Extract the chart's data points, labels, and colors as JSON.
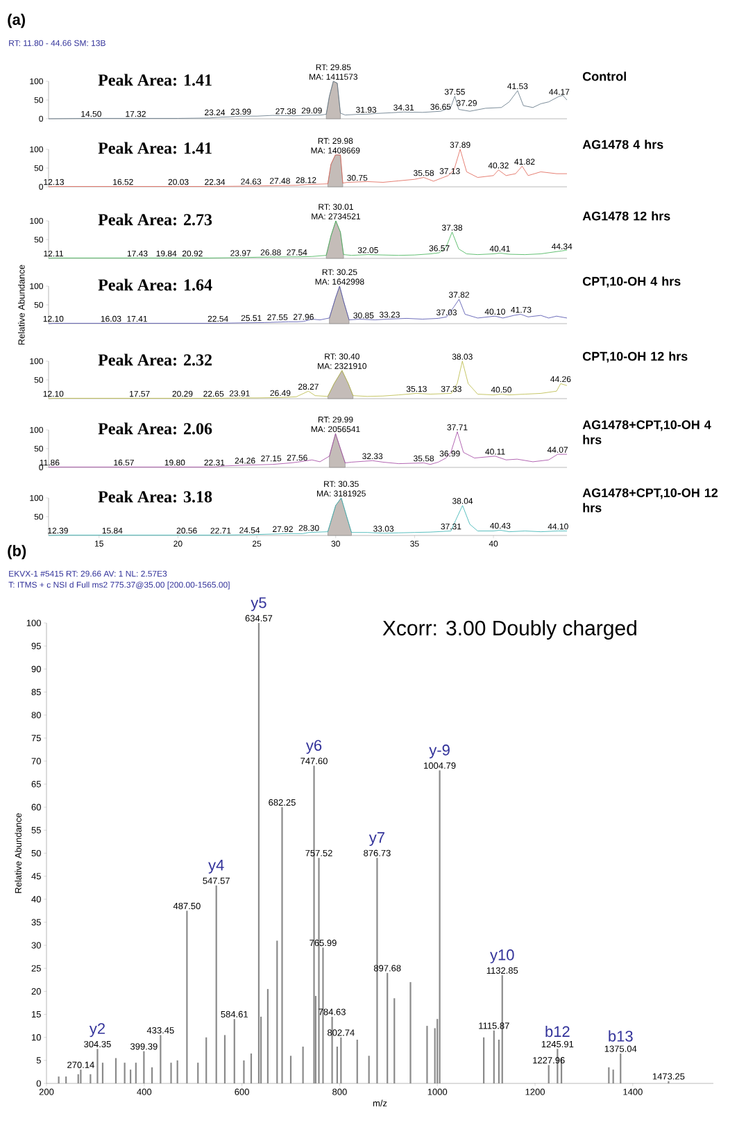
{
  "chart_data": [
    {
      "type": "line",
      "title": "(a)",
      "subtitle": "RT: 11.80 - 44.66 SM: 13B",
      "xlim": [
        11.8,
        44.66
      ],
      "ylim": [
        0,
        100
      ],
      "yticks": [
        0,
        50,
        100
      ],
      "tick_labels": "y",
      "series": [
        {
          "type": "area",
          "color": "#c4bcb8",
          "x": [
            29.4,
            29.6,
            29.85,
            30.1,
            30.3
          ],
          "values": [
            12,
            60,
            100,
            95,
            15
          ]
        },
        {
          "name": "Control",
          "color": "#5a7080",
          "x": [
            11.8,
            14.5,
            17.32,
            20,
            22,
            22.5,
            23.24,
            23.99,
            25,
            26,
            27.38,
            28,
            29.09,
            29.4,
            29.6,
            29.85,
            30.1,
            30.3,
            30.6,
            31.5,
            31.93,
            32.5,
            33.5,
            34.31,
            35.5,
            36.65,
            37.29,
            37.55,
            37.8,
            38.5,
            39.5,
            40.5,
            41,
            41.53,
            41.9,
            42.5,
            43,
            43.5,
            44.17,
            44.4,
            44.66
          ],
          "values": [
            0,
            1,
            1,
            1,
            2,
            4,
            5,
            7,
            7,
            9,
            8,
            9,
            10,
            12,
            60,
            100,
            95,
            15,
            10,
            12,
            12,
            14,
            16,
            18,
            17,
            20,
            30,
            60,
            25,
            20,
            28,
            30,
            45,
            75,
            35,
            30,
            40,
            45,
            60,
            62,
            50
          ]
        }
      ],
      "annotations": [
        "Peak Area: 1.41",
        {
          "text": "RT: 29.85",
          "x": 29.85,
          "y": 100
        },
        {
          "text": "MA: 1411573",
          "x": 29.85,
          "y": 100
        },
        {
          "text": "14.50",
          "x": 14.5,
          "y": 1
        },
        {
          "text": "17.32",
          "x": 17.32,
          "y": 1
        },
        {
          "text": "23.24",
          "x": 23.24,
          "y": 5
        },
        {
          "text": "23.99",
          "x": 23.99,
          "y": 7
        },
        {
          "text": "27.38",
          "x": 27.38,
          "y": 8
        },
        {
          "text": "29.09",
          "x": 29.09,
          "y": 10
        },
        {
          "text": "31.93",
          "x": 31.93,
          "y": 12
        },
        {
          "text": "34.31",
          "x": 34.31,
          "y": 18
        },
        {
          "text": "36.65",
          "x": 36.65,
          "y": 20
        },
        {
          "text": "37.29",
          "x": 37.29,
          "y": 30
        },
        {
          "text": "37.55",
          "x": 37.55,
          "y": 60
        },
        {
          "text": "41.53",
          "x": 41.53,
          "y": 75
        },
        {
          "text": "44.17",
          "x": 44.17,
          "y": 60
        }
      ]
    },
    {
      "type": "line",
      "xlim": [
        11.8,
        44.66
      ],
      "ylim": [
        0,
        100
      ],
      "yticks": [
        0,
        50,
        100
      ],
      "tick_labels": "y",
      "series": [
        {
          "type": "area",
          "color": "#c4bcb8",
          "x": [
            29.5,
            29.7,
            29.98,
            30.3,
            30.45
          ],
          "values": [
            8,
            60,
            85,
            85,
            10
          ]
        },
        {
          "name": "AG1478 4 hrs",
          "color": "#e06050",
          "x": [
            11.8,
            12.13,
            16.52,
            20.03,
            22.34,
            24.63,
            26,
            27.48,
            28.12,
            29.5,
            29.7,
            29.98,
            30.3,
            30.45,
            30.75,
            32,
            33,
            34,
            35,
            35.58,
            36.2,
            37.13,
            37.5,
            37.89,
            38.3,
            39,
            40,
            40.32,
            40.8,
            41.4,
            41.82,
            42.2,
            43,
            44,
            44.66
          ],
          "values": [
            0,
            1,
            1,
            1,
            1,
            2,
            3,
            4,
            6,
            8,
            60,
            85,
            85,
            10,
            12,
            14,
            12,
            16,
            20,
            25,
            15,
            30,
            45,
            100,
            40,
            25,
            30,
            45,
            30,
            35,
            55,
            30,
            40,
            35,
            35
          ]
        }
      ],
      "annotations": [
        "Peak Area: 1.41",
        {
          "text": "RT: 29.98",
          "x": 29.98,
          "y": 85
        },
        {
          "text": "MA: 1408669",
          "x": 29.98,
          "y": 85
        },
        {
          "text": "12.13",
          "x": 12.13,
          "y": 1
        },
        {
          "text": "16.52",
          "x": 16.52,
          "y": 1
        },
        {
          "text": "20.03",
          "x": 20.03,
          "y": 1
        },
        {
          "text": "22.34",
          "x": 22.34,
          "y": 1
        },
        {
          "text": "24.63",
          "x": 24.63,
          "y": 2
        },
        {
          "text": "27.48",
          "x": 27.48,
          "y": 4
        },
        {
          "text": "28.12",
          "x": 28.12,
          "y": 6
        },
        {
          "text": "30.75",
          "x": 30.75,
          "y": 12
        },
        {
          "text": "35.58",
          "x": 35.58,
          "y": 25
        },
        {
          "text": "37.13",
          "x": 37.13,
          "y": 30
        },
        {
          "text": "37.89",
          "x": 37.89,
          "y": 100
        },
        {
          "text": "40.32",
          "x": 40.32,
          "y": 45
        },
        {
          "text": "41.82",
          "x": 41.82,
          "y": 55
        }
      ]
    },
    {
      "type": "line",
      "xlim": [
        11.8,
        44.66
      ],
      "ylim": [
        0,
        100
      ],
      "yticks": [
        50,
        100
      ],
      "tick_labels": "y",
      "series": [
        {
          "type": "area",
          "color": "#c4bcb8",
          "x": [
            29.4,
            29.7,
            30.01,
            30.3,
            30.5
          ],
          "values": [
            8,
            60,
            100,
            70,
            10
          ]
        },
        {
          "name": "AG1478 12 hrs",
          "color": "#3cb050",
          "x": [
            11.8,
            12.11,
            17.43,
            19.84,
            20.92,
            22,
            23.97,
            25,
            26.88,
            27.54,
            28.5,
            29.4,
            29.7,
            30.01,
            30.3,
            30.5,
            31,
            32.05,
            33,
            34,
            35,
            36,
            36.57,
            37,
            37.38,
            37.8,
            38.3,
            39,
            40,
            40.41,
            41,
            42,
            43,
            44,
            44.34,
            44.66
          ],
          "values": [
            0,
            1,
            1,
            1,
            1,
            1,
            2,
            3,
            4,
            4,
            5,
            8,
            60,
            100,
            70,
            10,
            8,
            10,
            9,
            8,
            9,
            12,
            15,
            30,
            70,
            25,
            12,
            10,
            12,
            14,
            11,
            10,
            12,
            18,
            20,
            22
          ]
        }
      ],
      "annotations": [
        "Peak Area: 2.73",
        {
          "text": "RT: 30.01",
          "x": 30.01,
          "y": 100
        },
        {
          "text": "MA: 2734521",
          "x": 30.01,
          "y": 100
        },
        {
          "text": "12.11",
          "x": 12.11,
          "y": 1
        },
        {
          "text": "17.43",
          "x": 17.43,
          "y": 1
        },
        {
          "text": "19.84",
          "x": 19.84,
          "y": 1
        },
        {
          "text": "20.92",
          "x": 20.92,
          "y": 1
        },
        {
          "text": "23.97",
          "x": 23.97,
          "y": 2
        },
        {
          "text": "26.88",
          "x": 26.88,
          "y": 4
        },
        {
          "text": "27.54",
          "x": 27.54,
          "y": 4
        },
        {
          "text": "32.05",
          "x": 32.05,
          "y": 10
        },
        {
          "text": "36.57",
          "x": 36.57,
          "y": 15
        },
        {
          "text": "37.38",
          "x": 37.38,
          "y": 70
        },
        {
          "text": "40.41",
          "x": 40.41,
          "y": 14
        },
        {
          "text": "44.34",
          "x": 44.34,
          "y": 20
        }
      ]
    },
    {
      "type": "line",
      "ylabel": "Relative Abundance",
      "xlim": [
        11.8,
        44.66
      ],
      "ylim": [
        0,
        100
      ],
      "yticks": [
        50,
        100
      ],
      "tick_labels": "y",
      "series": [
        {
          "type": "area",
          "color": "#c4bcb8",
          "x": [
            29.6,
            30,
            30.25,
            30.5,
            30.85
          ],
          "values": [
            15,
            70,
            100,
            60,
            10
          ]
        },
        {
          "name": "CPT,10-OH 4 hrs",
          "color": "#4a4aaa",
          "x": [
            11.8,
            12.1,
            16.03,
            17.41,
            22,
            22.54,
            25.51,
            27,
            27.55,
            27.96,
            28.5,
            29,
            29.6,
            30,
            30.25,
            30.5,
            30.85,
            31.5,
            32.5,
            33.23,
            34.5,
            35.5,
            36.5,
            37.03,
            37.5,
            37.82,
            38.2,
            39,
            40.1,
            40.6,
            41.3,
            41.73,
            42.2,
            43,
            43.5,
            44,
            44.66
          ],
          "values": [
            0,
            1,
            1,
            1,
            1,
            1,
            3,
            5,
            5,
            6,
            12,
            10,
            15,
            70,
            100,
            60,
            10,
            12,
            10,
            12,
            14,
            12,
            14,
            18,
            45,
            65,
            25,
            15,
            20,
            15,
            22,
            25,
            18,
            22,
            15,
            20,
            15
          ]
        }
      ],
      "annotations": [
        "Peak Area: 1.64",
        {
          "text": "RT: 30.25",
          "x": 30.25,
          "y": 100
        },
        {
          "text": "MA: 1642998",
          "x": 30.25,
          "y": 100
        },
        {
          "text": "12.10",
          "x": 12.1,
          "y": 1
        },
        {
          "text": "16.03",
          "x": 16.03,
          "y": 1
        },
        {
          "text": "17.41",
          "x": 17.41,
          "y": 1
        },
        {
          "text": "22.54",
          "x": 22.54,
          "y": 1
        },
        {
          "text": "25.51",
          "x": 25.51,
          "y": 3
        },
        {
          "text": "27.55",
          "x": 27.55,
          "y": 5
        },
        {
          "text": "27.96",
          "x": 27.96,
          "y": 6
        },
        {
          "text": "30.85",
          "x": 30.85,
          "y": 10
        },
        {
          "text": "33.23",
          "x": 33.23,
          "y": 12
        },
        {
          "text": "37.03",
          "x": 37.03,
          "y": 18
        },
        {
          "text": "37.82",
          "x": 37.82,
          "y": 65
        },
        {
          "text": "40.10",
          "x": 40.1,
          "y": 20
        },
        {
          "text": "41.73",
          "x": 41.73,
          "y": 25
        }
      ]
    },
    {
      "type": "line",
      "xlim": [
        11.8,
        44.66
      ],
      "ylim": [
        0,
        100
      ],
      "yticks": [
        50,
        100
      ],
      "tick_labels": "y",
      "series": [
        {
          "type": "area",
          "color": "#c4bcb8",
          "x": [
            29.5,
            29.9,
            30.4,
            30.8,
            31.1
          ],
          "values": [
            6,
            40,
            75,
            40,
            8
          ]
        },
        {
          "name": "CPT,10-OH 12 hrs",
          "color": "#b8b840",
          "x": [
            11.8,
            12.1,
            17.57,
            20.29,
            22,
            22.65,
            23.91,
            25,
            26.49,
            27.5,
            28.27,
            28.7,
            29.5,
            29.9,
            30.4,
            30.8,
            31.1,
            32,
            33,
            34,
            35.13,
            36,
            37.33,
            37.7,
            38.03,
            38.4,
            39,
            40,
            40.5,
            41,
            42,
            43,
            44,
            44.26,
            44.66
          ],
          "values": [
            0,
            1,
            1,
            1,
            1,
            1,
            2,
            2,
            3,
            5,
            20,
            8,
            6,
            40,
            75,
            40,
            8,
            6,
            7,
            10,
            14,
            12,
            14,
            40,
            100,
            40,
            12,
            10,
            12,
            10,
            12,
            14,
            20,
            40,
            35
          ]
        }
      ],
      "annotations": [
        "Peak Area: 2.32",
        {
          "text": "RT: 30.40",
          "x": 30.4,
          "y": 75
        },
        {
          "text": "MA: 2321910",
          "x": 30.4,
          "y": 75
        },
        {
          "text": "12.10",
          "x": 12.1,
          "y": 1
        },
        {
          "text": "17.57",
          "x": 17.57,
          "y": 1
        },
        {
          "text": "20.29",
          "x": 20.29,
          "y": 1
        },
        {
          "text": "22.65",
          "x": 22.65,
          "y": 1
        },
        {
          "text": "23.91",
          "x": 23.91,
          "y": 2
        },
        {
          "text": "26.49",
          "x": 26.49,
          "y": 3
        },
        {
          "text": "28.27",
          "x": 28.27,
          "y": 20
        },
        {
          "text": "35.13",
          "x": 35.13,
          "y": 14
        },
        {
          "text": "37.33",
          "x": 37.33,
          "y": 14
        },
        {
          "text": "38.03",
          "x": 38.03,
          "y": 100
        },
        {
          "text": "40.50",
          "x": 40.5,
          "y": 12
        },
        {
          "text": "44.26",
          "x": 44.26,
          "y": 40
        }
      ]
    },
    {
      "type": "line",
      "xlim": [
        11.8,
        44.66
      ],
      "ylim": [
        0,
        100
      ],
      "yticks": [
        0,
        50,
        100
      ],
      "tick_labels": "y",
      "series": [
        {
          "type": "area",
          "color": "#c4bcb8",
          "x": [
            29.6,
            29.99,
            30.3,
            30.6
          ],
          "values": [
            30,
            90,
            50,
            12
          ]
        },
        {
          "name": "AG1478+CPT,10-OH 4 hrs",
          "color": "#a040a0",
          "x": [
            11.8,
            11.86,
            16.57,
            19.8,
            22.31,
            23,
            24.26,
            26,
            27.15,
            27.56,
            28.5,
            29,
            29.6,
            29.99,
            30.3,
            30.6,
            31,
            32.33,
            33,
            34,
            35.58,
            36,
            36.5,
            36.99,
            37.3,
            37.71,
            38.1,
            38.8,
            40.11,
            40.8,
            41.5,
            42.5,
            43.5,
            44.07,
            44.66
          ],
          "values": [
            0,
            1,
            1,
            1,
            1,
            4,
            6,
            8,
            12,
            14,
            20,
            15,
            30,
            90,
            50,
            12,
            14,
            18,
            14,
            10,
            12,
            8,
            14,
            25,
            40,
            95,
            40,
            25,
            30,
            20,
            22,
            15,
            20,
            35,
            35
          ]
        }
      ],
      "annotations": [
        "Peak Area: 2.06",
        {
          "text": "RT: 29.99",
          "x": 29.99,
          "y": 90
        },
        {
          "text": "MA: 2056541",
          "x": 29.99,
          "y": 90
        },
        {
          "text": "11.86",
          "x": 11.86,
          "y": 1
        },
        {
          "text": "16.57",
          "x": 16.57,
          "y": 1
        },
        {
          "text": "19.80",
          "x": 19.8,
          "y": 1
        },
        {
          "text": "22.31",
          "x": 22.31,
          "y": 1
        },
        {
          "text": "24.26",
          "x": 24.26,
          "y": 6
        },
        {
          "text": "27.15",
          "x": 27.15,
          "y": 12
        },
        {
          "text": "27.56",
          "x": 27.56,
          "y": 14
        },
        {
          "text": "32.33",
          "x": 32.33,
          "y": 18
        },
        {
          "text": "35.58",
          "x": 35.58,
          "y": 12
        },
        {
          "text": "36.99",
          "x": 36.99,
          "y": 25
        },
        {
          "text": "37.71",
          "x": 37.71,
          "y": 95
        },
        {
          "text": "40.11",
          "x": 40.11,
          "y": 30
        },
        {
          "text": "44.07",
          "x": 44.07,
          "y": 35
        }
      ]
    },
    {
      "type": "line",
      "xlim": [
        11.8,
        44.66
      ],
      "ylim": [
        0,
        100
      ],
      "yticks": [
        50,
        100
      ],
      "xticks": [
        15,
        20,
        25,
        30,
        35,
        40
      ],
      "series": [
        {
          "type": "area",
          "color": "#c4bcb8",
          "x": [
            29.5,
            30,
            30.35,
            30.7,
            31
          ],
          "values": [
            10,
            80,
            100,
            50,
            8
          ]
        },
        {
          "name": "AG1478+CPT,10-OH 12 hrs",
          "color": "#30b0b0",
          "x": [
            11.8,
            12.39,
            15.84,
            20.56,
            22,
            22.71,
            24.54,
            27,
            27.92,
            28.3,
            29.5,
            30,
            30.35,
            30.7,
            31,
            32,
            33.03,
            34,
            35,
            36,
            37.31,
            37.6,
            38.04,
            38.5,
            39,
            40,
            40.43,
            41,
            42,
            43,
            44.1,
            44.66
          ],
          "values": [
            0,
            1,
            1,
            1,
            1,
            1,
            2,
            5,
            5,
            8,
            10,
            80,
            100,
            50,
            8,
            8,
            6,
            7,
            8,
            9,
            12,
            40,
            80,
            30,
            12,
            12,
            14,
            10,
            12,
            10,
            12,
            12
          ]
        }
      ],
      "annotations": [
        "Peak Area: 3.18",
        {
          "text": "RT: 30.35",
          "x": 30.35,
          "y": 100
        },
        {
          "text": "MA: 3181925",
          "x": 30.35,
          "y": 100
        },
        {
          "text": "12.39",
          "x": 12.39,
          "y": 1
        },
        {
          "text": "15.84",
          "x": 15.84,
          "y": 1
        },
        {
          "text": "20.56",
          "x": 20.56,
          "y": 1
        },
        {
          "text": "22.71",
          "x": 22.71,
          "y": 1
        },
        {
          "text": "24.54",
          "x": 24.54,
          "y": 2
        },
        {
          "text": "27.92",
          "x": 27.92,
          "y": 5
        },
        {
          "text": "28.30",
          "x": 28.3,
          "y": 8
        },
        {
          "text": "33.03",
          "x": 33.03,
          "y": 6
        },
        {
          "text": "37.31",
          "x": 37.31,
          "y": 12
        },
        {
          "text": "38.04",
          "x": 38.04,
          "y": 80
        },
        {
          "text": "40.43",
          "x": 40.43,
          "y": 14
        },
        {
          "text": "44.10",
          "x": 44.1,
          "y": 12
        }
      ]
    },
    {
      "type": "bar",
      "title": "(b)",
      "subtitle": "EKVX-1 #5415 RT: 29.66 AV: 1 NL: 2.57E3",
      "xlabel": "m/z",
      "ylabel": "Relative Abundance",
      "xlim": [
        200,
        1565
      ],
      "ylim": [
        0,
        100
      ],
      "xticks": [
        200,
        400,
        600,
        800,
        1000,
        1200,
        1400
      ],
      "yticks": [
        0,
        5,
        10,
        15,
        20,
        25,
        30,
        35,
        40,
        45,
        50,
        55,
        60,
        65,
        70,
        75,
        80,
        85,
        90,
        95,
        100
      ],
      "color": "#8a8a8a",
      "x": [
        225,
        240,
        265,
        270.14,
        290,
        304.35,
        315,
        342,
        360,
        372,
        383,
        399.39,
        416,
        433.45,
        455,
        468,
        487.5,
        510,
        527,
        547.57,
        565,
        584.61,
        604,
        619,
        634.57,
        639,
        653,
        672,
        682.25,
        700,
        725,
        747.6,
        751,
        757.52,
        765.99,
        784.63,
        795,
        802.74,
        836,
        860,
        876.73,
        897.68,
        912,
        945,
        979,
        995,
        1000,
        1004.79,
        1095,
        1115.87,
        1126,
        1132.85,
        1227.96,
        1245.91,
        1254,
        1351,
        1360,
        1375.04,
        1473.25
      ],
      "values": [
        1.5,
        1.5,
        2,
        3,
        2,
        7.5,
        4.5,
        5.5,
        4.5,
        3,
        4.5,
        7,
        3.5,
        10.5,
        4.5,
        5,
        37.5,
        4.5,
        10,
        43,
        10.5,
        14,
        5,
        6.5,
        100,
        14.5,
        20.5,
        31,
        60,
        6,
        8,
        69,
        19,
        49,
        29.5,
        14.5,
        8,
        10,
        9.5,
        6,
        49,
        24,
        18.5,
        22,
        12.5,
        12,
        14,
        68,
        10,
        11.5,
        9.5,
        23.5,
        4,
        7.5,
        5.5,
        3.5,
        3,
        6.5,
        0.5
      ],
      "annotations": [
        "T: ITMS + c NSI d Full ms2 775.37@35.00 [200.00-1565.00]",
        "Xcorr: 3.00 Doubly charged",
        {
          "text": "270.14",
          "x": 270.14,
          "y": 3
        },
        {
          "text": "y2",
          "x": 304.35,
          "y": 7.5
        },
        {
          "text": "304.35",
          "x": 304.35,
          "y": 7.5
        },
        {
          "text": "399.39",
          "x": 399.39,
          "y": 7
        },
        {
          "text": "433.45",
          "x": 433.45,
          "y": 10.5
        },
        {
          "text": "487.50",
          "x": 487.5,
          "y": 37.5
        },
        {
          "text": "y4",
          "x": 547.57,
          "y": 43
        },
        {
          "text": "547.57",
          "x": 547.57,
          "y": 43
        },
        {
          "text": "584.61",
          "x": 584.61,
          "y": 14
        },
        {
          "text": "y5",
          "x": 634.57,
          "y": 100
        },
        {
          "text": "634.57",
          "x": 634.57,
          "y": 100
        },
        {
          "text": "682.25",
          "x": 682.25,
          "y": 60
        },
        {
          "text": "y6",
          "x": 747.6,
          "y": 69
        },
        {
          "text": "747.60",
          "x": 747.6,
          "y": 69
        },
        {
          "text": "757.52",
          "x": 757.52,
          "y": 49
        },
        {
          "text": "765.99",
          "x": 765.99,
          "y": 29.5
        },
        {
          "text": "784.63",
          "x": 784.63,
          "y": 14.5
        },
        {
          "text": "802.74",
          "x": 802.74,
          "y": 10
        },
        {
          "text": "y7",
          "x": 876.73,
          "y": 49
        },
        {
          "text": "876.73",
          "x": 876.73,
          "y": 49
        },
        {
          "text": "897.68",
          "x": 897.68,
          "y": 24
        },
        {
          "text": "y-9",
          "x": 1004.79,
          "y": 68
        },
        {
          "text": "1004.79",
          "x": 1004.79,
          "y": 68
        },
        {
          "text": "1115.87",
          "x": 1115.87,
          "y": 11.5
        },
        {
          "text": "y10",
          "x": 1132.85,
          "y": 23.5
        },
        {
          "text": "1132.85",
          "x": 1132.85,
          "y": 23.5
        },
        {
          "text": "1227.96",
          "x": 1227.96,
          "y": 4
        },
        {
          "text": "b12",
          "x": 1245.91,
          "y": 7.5
        },
        {
          "text": "1245.91",
          "x": 1245.91,
          "y": 7.5
        },
        {
          "text": "b13",
          "x": 1375.04,
          "y": 6.5
        },
        {
          "text": "1375.04",
          "x": 1375.04,
          "y": 6.5
        },
        {
          "text": "1473.25",
          "x": 1473.25,
          "y": 0.5
        }
      ]
    }
  ]
}
